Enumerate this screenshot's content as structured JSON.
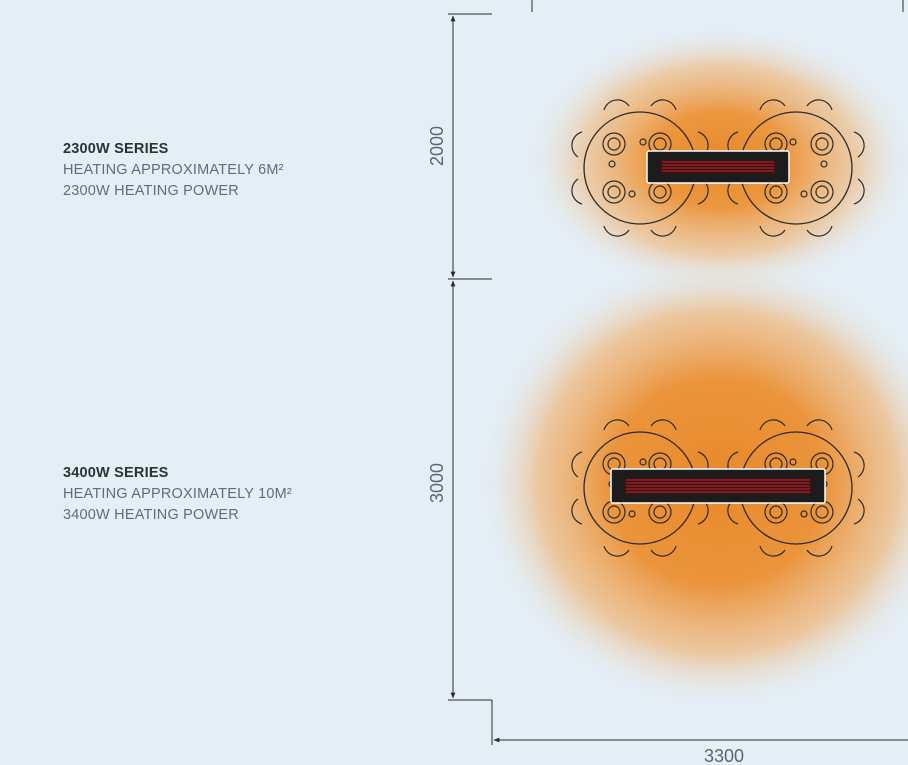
{
  "series": [
    {
      "title": "2300W SERIES",
      "line1": "HEATING APPROXIMATELY 6M²",
      "line2": "2300W HEATING POWER"
    },
    {
      "title": "3400W SERIES",
      "line1": "HEATING APPROXIMATELY 10M²",
      "line2": "3400W HEATING POWER"
    }
  ],
  "dimensions": {
    "upper_height": "2000",
    "lower_height": "3000",
    "width": "3300"
  },
  "colors": {
    "background": "#e4eef5",
    "heat": "#e8892a",
    "line": "#2b2b2b",
    "heater_body": "#1c1c1c",
    "heater_element": "#c0262c"
  }
}
